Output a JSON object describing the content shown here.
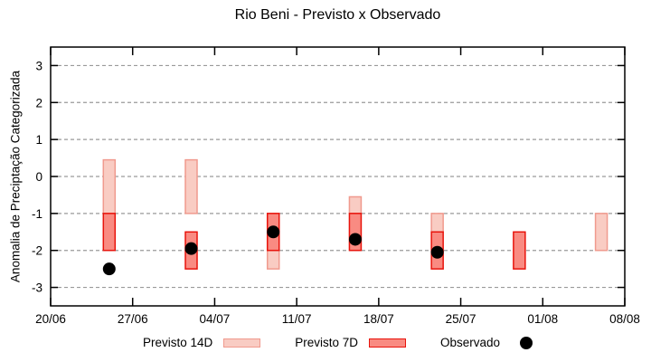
{
  "colors": {
    "background": "#ffffff",
    "axis": "#000000",
    "grid": "#9a9a9a",
    "previsto_14d_fill": "#f9ccc3",
    "previsto_14d_stroke": "#f09a8e",
    "previsto_7d_fill": "#f98b82",
    "previsto_7d_stroke": "#e8140c",
    "observado": "#000000"
  },
  "legend": {
    "items": [
      {
        "label": "Previsto 14D",
        "swatch": "light-pink-box"
      },
      {
        "label": "Previsto 7D",
        "swatch": "red-box"
      },
      {
        "label": "Observado",
        "swatch": "black-dot"
      }
    ]
  },
  "chart_data": {
    "type": "bar",
    "title": "Rio Beni - Previsto x Observado",
    "xlabel": "",
    "ylabel": "Anomalia de Preciptação Categorizada",
    "ylim": [
      -3.5,
      3.5
    ],
    "xlim_days": [
      0,
      49
    ],
    "grid": true,
    "grid_style": "dashed-horizontal",
    "legend_position": "bottom",
    "x_ticks": [
      {
        "day": 0,
        "label": "20/06"
      },
      {
        "day": 7,
        "label": "27/06"
      },
      {
        "day": 14,
        "label": "04/07"
      },
      {
        "day": 21,
        "label": "11/07"
      },
      {
        "day": 28,
        "label": "18/07"
      },
      {
        "day": 35,
        "label": "25/07"
      },
      {
        "day": 42,
        "label": "01/08"
      },
      {
        "day": 49,
        "label": "08/08"
      }
    ],
    "y_ticks": [
      {
        "v": 3,
        "label": "3"
      },
      {
        "v": 2,
        "label": "2"
      },
      {
        "v": 1,
        "label": "1"
      },
      {
        "v": 0,
        "label": "0"
      },
      {
        "v": -1,
        "label": "-1"
      },
      {
        "v": -2,
        "label": "-2"
      },
      {
        "v": -3,
        "label": "-3"
      }
    ],
    "series": [
      {
        "name": "Previsto 14D",
        "type": "range-bar"
      },
      {
        "name": "Previsto 7D",
        "type": "range-bar"
      },
      {
        "name": "Observado",
        "type": "scatter"
      }
    ],
    "groups": [
      {
        "date": "25/06",
        "day": 5,
        "previsto_14d": [
          0.45,
          -1.0
        ],
        "previsto_7d": [
          -1.0,
          -2.0
        ],
        "observado": -2.5
      },
      {
        "date": "02/07",
        "day": 12,
        "previsto_14d": [
          0.45,
          -1.0
        ],
        "previsto_7d": [
          -1.5,
          -2.5
        ],
        "observado": -1.95
      },
      {
        "date": "09/07",
        "day": 19,
        "previsto_14d": [
          -1.0,
          -2.5
        ],
        "previsto_7d": [
          -1.0,
          -2.0
        ],
        "observado": -1.5
      },
      {
        "date": "16/07",
        "day": 26,
        "previsto_14d": [
          -0.55,
          -1.0
        ],
        "previsto_7d": [
          -1.0,
          -2.0
        ],
        "observado": -1.7
      },
      {
        "date": "23/07",
        "day": 33,
        "previsto_14d": [
          -1.0,
          -1.5
        ],
        "previsto_7d": [
          -1.5,
          -2.5
        ],
        "observado": -2.05
      },
      {
        "date": "30/07",
        "day": 40,
        "previsto_14d": null,
        "previsto_7d": [
          -1.5,
          -2.5
        ],
        "observado": null
      },
      {
        "date": "06/08",
        "day": 47,
        "previsto_14d": [
          -1.0,
          -2.0
        ],
        "previsto_7d": null,
        "observado": null
      }
    ]
  }
}
